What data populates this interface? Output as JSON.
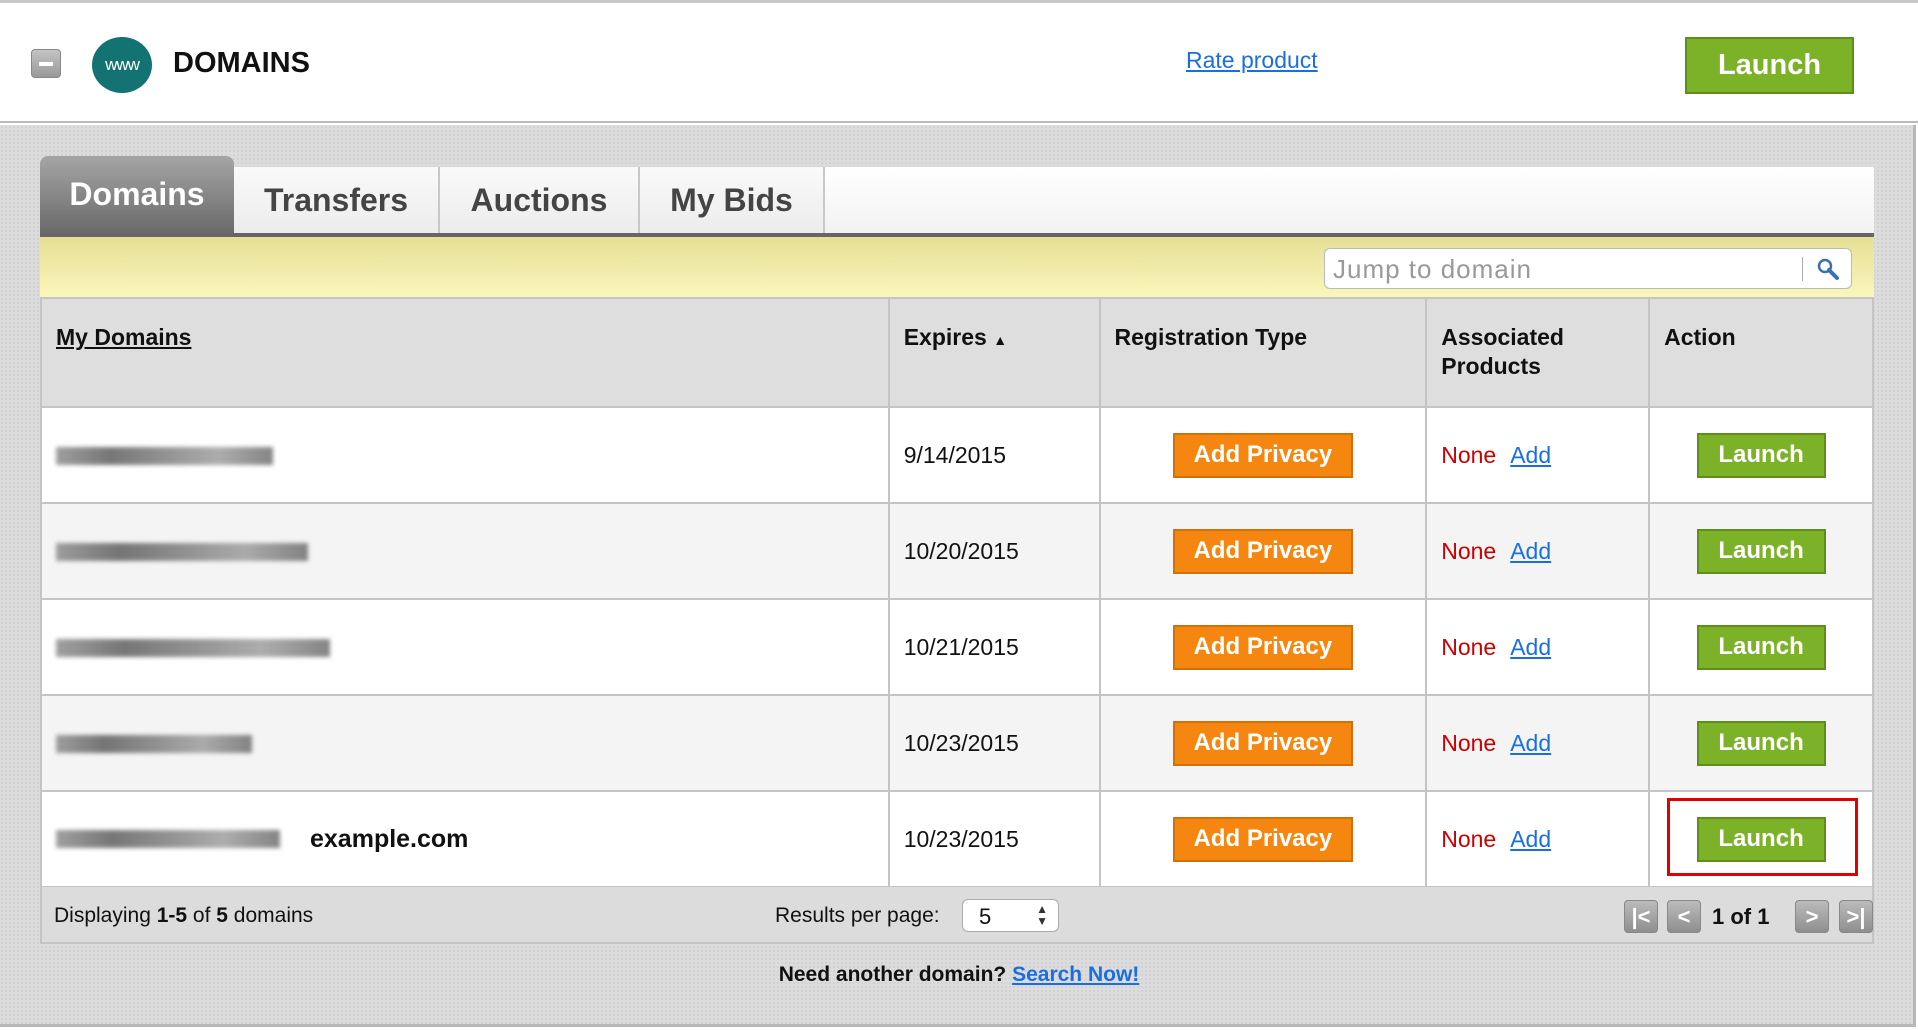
{
  "header": {
    "title": "DOMAINS",
    "logo_text": "www",
    "rate_link": "Rate product",
    "launch_label": "Launch"
  },
  "tabs": [
    {
      "label": "Domains",
      "active": true
    },
    {
      "label": "Transfers"
    },
    {
      "label": "Auctions"
    },
    {
      "label": "My Bids"
    }
  ],
  "search": {
    "placeholder": "Jump to domain"
  },
  "table": {
    "columns": [
      "My Domains",
      "Expires",
      "Registration Type",
      "Associated Products",
      "Action"
    ],
    "sort_indicator": "▲",
    "rows": [
      {
        "domain": "",
        "expires": "9/14/2015",
        "reg": "Add Privacy",
        "assoc": "None",
        "assoc_link": "Add",
        "action": "Launch"
      },
      {
        "domain": "",
        "expires": "10/20/2015",
        "reg": "Add Privacy",
        "assoc": "None",
        "assoc_link": "Add",
        "action": "Launch"
      },
      {
        "domain": "",
        "expires": "10/21/2015",
        "reg": "Add Privacy",
        "assoc": "None",
        "assoc_link": "Add",
        "action": "Launch"
      },
      {
        "domain": "",
        "expires": "10/23/2015",
        "reg": "Add Privacy",
        "assoc": "None",
        "assoc_link": "Add",
        "action": "Launch"
      },
      {
        "domain": "example.com",
        "expires": "10/23/2015",
        "reg": "Add Privacy",
        "assoc": "None",
        "assoc_link": "Add",
        "action": "Launch"
      }
    ]
  },
  "footer": {
    "displaying_prefix": "Displaying ",
    "range": "1-5",
    "of": " of ",
    "total": "5",
    "suffix": " domains",
    "rpp_label": "Results per page:",
    "rpp_value": "5",
    "page_info": "1 of 1"
  },
  "bottom": {
    "question": "Need another domain?",
    "link": "Search Now!"
  },
  "colors": {
    "launch_green": "#7cb227",
    "privacy_orange": "#f5860f",
    "none_red": "#cc0000",
    "link_blue": "#1a6fe0",
    "highlight_red": "#e50000"
  }
}
